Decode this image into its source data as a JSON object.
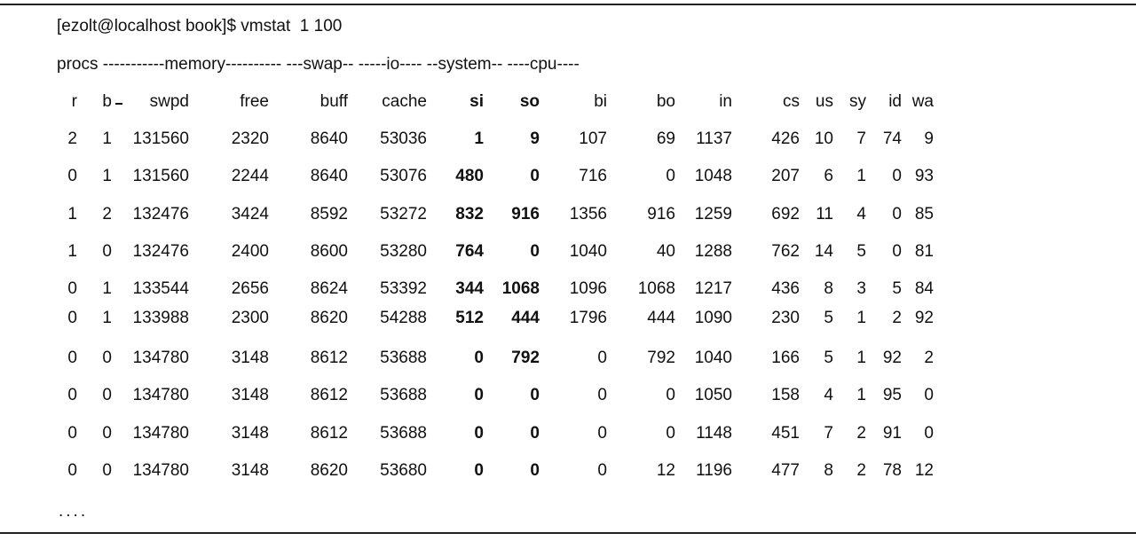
{
  "terminal": {
    "command_line": "[ezolt@localhost book]$ vmstat  1 100",
    "group_header": "procs -----------memory---------- ---swap-- -----io---- --system-- ----cpu----",
    "ellipsis": "....",
    "columns": [
      "r",
      "b",
      "swpd",
      "free",
      "buff",
      "cache",
      "si",
      "so",
      "bi",
      "bo",
      "in",
      "cs",
      "us",
      "sy",
      "id",
      "wa"
    ],
    "bold_columns": [
      "si",
      "so"
    ],
    "rows": [
      [
        "2",
        "1",
        "131560",
        "2320",
        "8640",
        "53036",
        "1",
        "9",
        "107",
        "69",
        "1137",
        "426",
        "10",
        "7",
        "74",
        "9"
      ],
      [
        "0",
        "1",
        "131560",
        "2244",
        "8640",
        "53076",
        "480",
        "0",
        "716",
        "0",
        "1048",
        "207",
        "6",
        "1",
        "0",
        "93"
      ],
      [
        "1",
        "2",
        "132476",
        "3424",
        "8592",
        "53272",
        "832",
        "916",
        "1356",
        "916",
        "1259",
        "692",
        "11",
        "4",
        "0",
        "85"
      ],
      [
        "1",
        "0",
        "132476",
        "2400",
        "8600",
        "53280",
        "764",
        "0",
        "1040",
        "40",
        "1288",
        "762",
        "14",
        "5",
        "0",
        "81"
      ],
      [
        "0",
        "1",
        "133544",
        "2656",
        "8624",
        "53392",
        "344",
        "1068",
        "1096",
        "1068",
        "1217",
        "436",
        "8",
        "3",
        "5",
        "84"
      ],
      [
        "0",
        "1",
        "133988",
        "2300",
        "8620",
        "54288",
        "512",
        "444",
        "1796",
        "444",
        "1090",
        "230",
        "5",
        "1",
        "2",
        "92"
      ],
      [
        "0",
        "0",
        "134780",
        "3148",
        "8612",
        "53688",
        "0",
        "792",
        "0",
        "792",
        "1040",
        "166",
        "5",
        "1",
        "92",
        "2"
      ],
      [
        "0",
        "0",
        "134780",
        "3148",
        "8612",
        "53688",
        "0",
        "0",
        "0",
        "0",
        "1050",
        "158",
        "4",
        "1",
        "95",
        "0"
      ],
      [
        "0",
        "0",
        "134780",
        "3148",
        "8612",
        "53688",
        "0",
        "0",
        "0",
        "0",
        "1148",
        "451",
        "7",
        "2",
        "91",
        "0"
      ],
      [
        "0",
        "0",
        "134780",
        "3148",
        "8620",
        "53680",
        "0",
        "0",
        "0",
        "12",
        "1196",
        "477",
        "8",
        "2",
        "78",
        "12"
      ]
    ]
  }
}
